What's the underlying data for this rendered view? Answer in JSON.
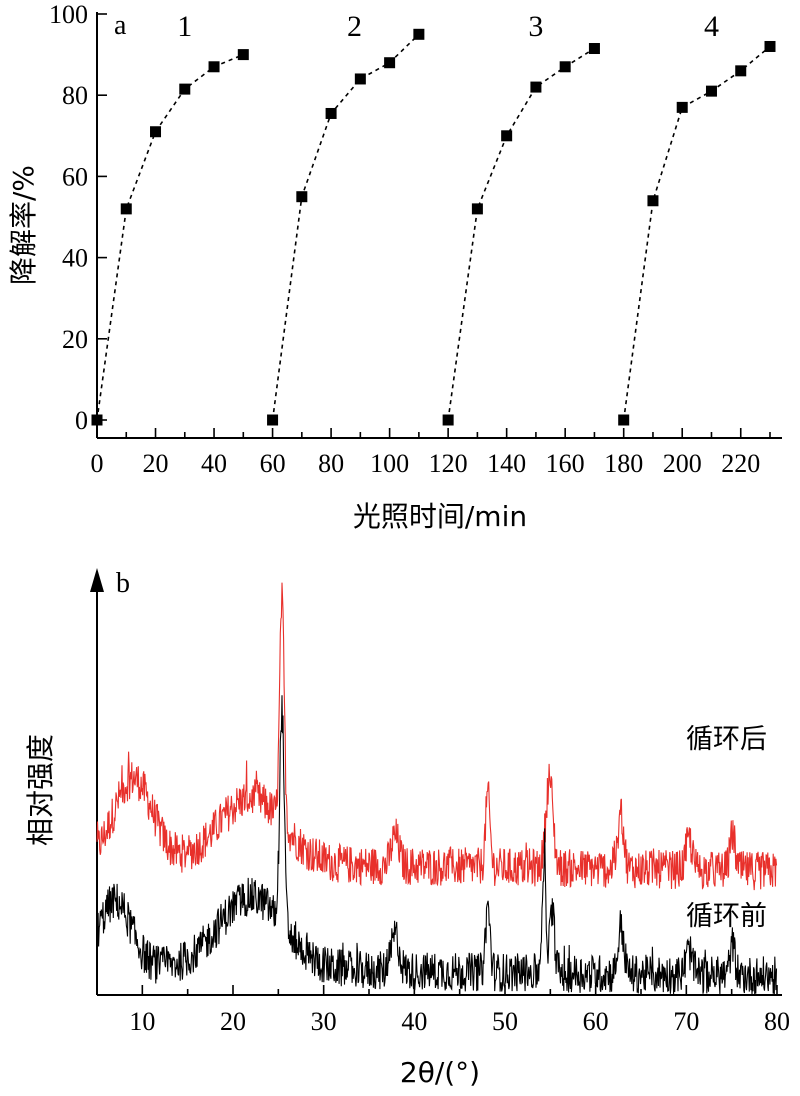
{
  "chart_data": [
    {
      "type": "line",
      "panel_label": "a",
      "xlabel": "光照时间/min",
      "ylabel": "降解率/%",
      "xlim": [
        0,
        230
      ],
      "ylim": [
        0,
        100
      ],
      "xticks": [
        "0",
        "20",
        "40",
        "60",
        "80",
        "100",
        "120",
        "140",
        "160",
        "180",
        "200",
        "220"
      ],
      "yticks": [
        "0",
        "20",
        "40",
        "60",
        "80",
        "100"
      ],
      "cycle_labels": [
        {
          "text": "1",
          "x": 30
        },
        {
          "text": "2",
          "x": 88
        },
        {
          "text": "3",
          "x": 150
        },
        {
          "text": "4",
          "x": 210
        }
      ],
      "series": [
        {
          "x": [
            0,
            10,
            20,
            30,
            40,
            50
          ],
          "values": [
            0,
            52,
            71,
            81.5,
            87,
            90
          ]
        },
        {
          "x": [
            60,
            70,
            80,
            90,
            100,
            110
          ],
          "values": [
            0,
            55,
            75.5,
            84,
            88,
            95
          ]
        },
        {
          "x": [
            120,
            130,
            140,
            150,
            160,
            170
          ],
          "values": [
            0,
            52,
            70,
            82,
            87,
            91.5
          ]
        },
        {
          "x": [
            180,
            190,
            200,
            210,
            220,
            230
          ],
          "values": [
            0,
            54,
            77,
            81,
            86,
            92
          ]
        }
      ]
    },
    {
      "type": "line",
      "panel_label": "b",
      "xlabel": "2θ/(°)",
      "ylabel": "相对强度",
      "xlim": [
        5,
        80
      ],
      "xticks": [
        "10",
        "20",
        "30",
        "40",
        "50",
        "60",
        "70",
        "80"
      ],
      "series": [
        {
          "name": "循环后",
          "color": "#e8302b",
          "baseline": 0.35,
          "peaks": [
            [
              25.4,
              0.74,
              0.35
            ],
            [
              48.1,
              0.24,
              0.35
            ],
            [
              54.9,
              0.3,
              0.55
            ],
            [
              62.8,
              0.18,
              0.45
            ],
            [
              70.3,
              0.1,
              0.5
            ],
            [
              75.1,
              0.12,
              0.4
            ],
            [
              37.9,
              0.1,
              0.6
            ]
          ],
          "hump": [
            [
              9,
              0.28,
              3
            ],
            [
              22,
              0.22,
              5
            ]
          ]
        },
        {
          "name": "循环前",
          "color": "#000000",
          "baseline": 0.0,
          "peaks": [
            [
              25.4,
              0.72,
              0.35
            ],
            [
              48.1,
              0.22,
              0.35
            ],
            [
              54.3,
              0.36,
              0.3
            ],
            [
              55.2,
              0.2,
              0.4
            ],
            [
              62.8,
              0.16,
              0.45
            ],
            [
              70.3,
              0.08,
              0.5
            ],
            [
              75.1,
              0.1,
              0.4
            ],
            [
              37.9,
              0.12,
              0.6
            ]
          ],
          "hump": [
            [
              7,
              0.22,
              2.5
            ],
            [
              22,
              0.24,
              5
            ]
          ]
        }
      ]
    }
  ]
}
